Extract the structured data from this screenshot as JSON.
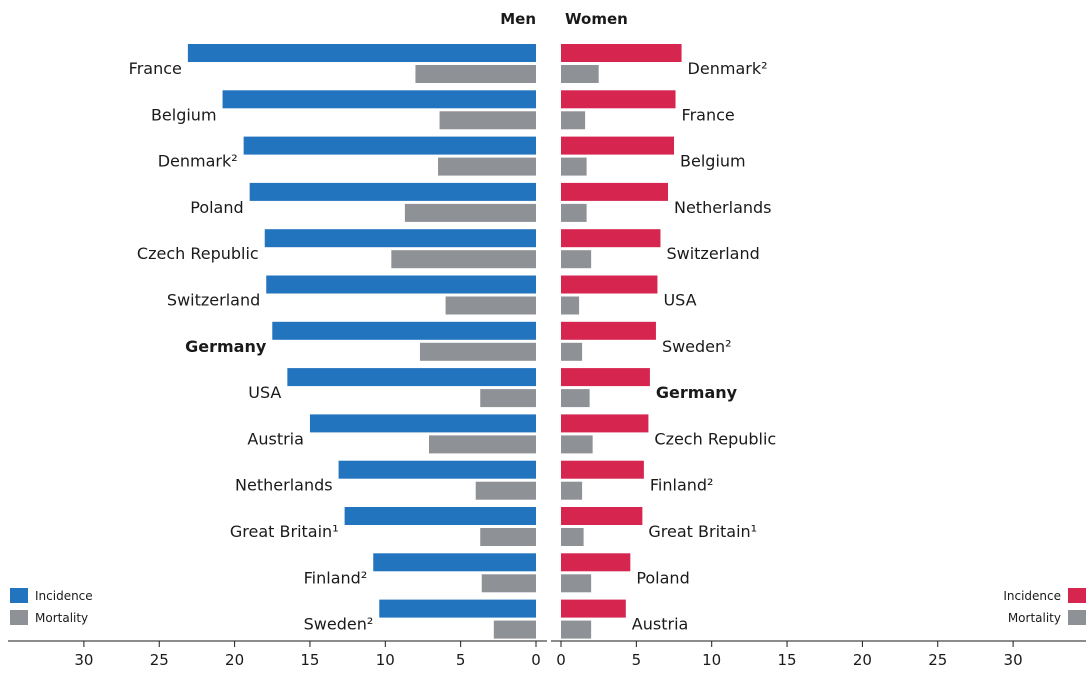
{
  "chart_data": {
    "type": "bar",
    "orientation": "horizontal",
    "headers": {
      "men": "Men",
      "women": "Women"
    },
    "highlight": "Germany",
    "colors": {
      "men_incidence": "#2374bf",
      "women_incidence": "#d6254f",
      "mortality": "#8e9196"
    },
    "x_ticks": [
      "30",
      "25",
      "20",
      "15",
      "10",
      "5",
      "0"
    ],
    "x_ticks_right": [
      "0",
      "5",
      "10",
      "15",
      "20",
      "25",
      "30"
    ],
    "xlim": [
      0,
      35
    ],
    "men": {
      "categories": [
        "France",
        "Belgium",
        "Denmark²",
        "Poland",
        "Czech Republic",
        "Switzerland",
        "Germany",
        "USA",
        "Austria",
        "Netherlands",
        "Great Britain¹",
        "Finland²",
        "Sweden²"
      ],
      "series": [
        {
          "name": "Incidence",
          "values": [
            23.1,
            20.8,
            19.4,
            19.0,
            18.0,
            17.9,
            17.5,
            16.5,
            15.0,
            13.1,
            12.7,
            10.8,
            10.4
          ]
        },
        {
          "name": "Mortality",
          "values": [
            8.0,
            6.4,
            6.5,
            8.7,
            9.6,
            6.0,
            7.7,
            3.7,
            7.1,
            4.0,
            3.7,
            3.6,
            2.8
          ]
        }
      ]
    },
    "women": {
      "categories": [
        "Denmark²",
        "France",
        "Belgium",
        "Netherlands",
        "Switzerland",
        "USA",
        "Sweden²",
        "Germany",
        "Czech Republic",
        "Finland²",
        "Great Britain¹",
        "Poland",
        "Austria"
      ],
      "series": [
        {
          "name": "Incidence",
          "values": [
            8.0,
            7.6,
            7.5,
            7.1,
            6.6,
            6.4,
            6.3,
            5.9,
            5.8,
            5.5,
            5.4,
            4.6,
            4.3
          ]
        },
        {
          "name": "Mortality",
          "values": [
            2.5,
            1.6,
            1.7,
            1.7,
            2.0,
            1.2,
            1.4,
            1.9,
            2.1,
            1.4,
            1.5,
            2.0,
            2.0
          ]
        }
      ]
    },
    "legend": {
      "incidence": "Incidence",
      "mortality": "Mortality",
      "placement": "bottom-left and bottom-right"
    }
  }
}
